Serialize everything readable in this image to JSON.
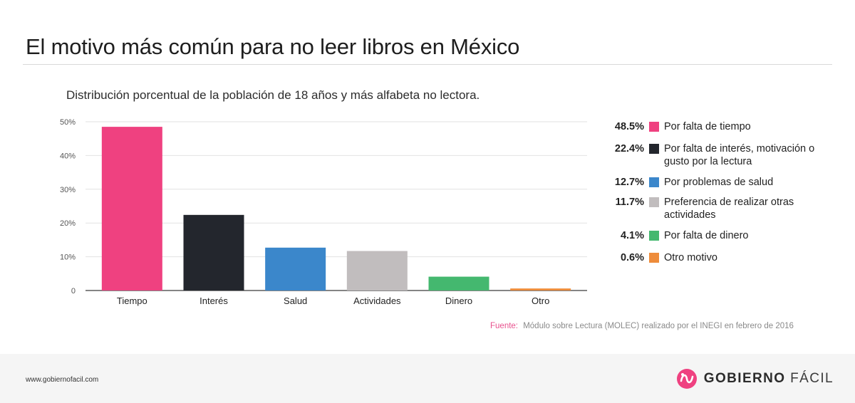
{
  "title": "El motivo más común para no leer libros en México",
  "subtitle": "Distribución porcentual de la población de 18 años y más alfabeta no lectora.",
  "chart_data": {
    "type": "bar",
    "categories": [
      "Tiempo",
      "Interés",
      "Salud",
      "Actividades",
      "Dinero",
      "Otro"
    ],
    "values": [
      48.5,
      22.4,
      12.7,
      11.7,
      4.1,
      0.6
    ],
    "colors": [
      "#ef4180",
      "#23262d",
      "#3b87cb",
      "#c1bdbe",
      "#44b86f",
      "#ee8c3b"
    ],
    "ylim": [
      0,
      50
    ],
    "yticks": [
      0,
      10,
      20,
      30,
      40,
      50
    ],
    "ytick_labels": [
      "0",
      "10%",
      "20%",
      "30%",
      "40%",
      "50%"
    ],
    "grid": true,
    "legend_position": "right"
  },
  "legend": [
    {
      "value": "48.5%",
      "label": "Por falta de tiempo",
      "color": "#ef4180"
    },
    {
      "value": "22.4%",
      "label": "Por falta de interés, motivación o gusto por la lectura",
      "color": "#23262d"
    },
    {
      "value": "12.7%",
      "label": "Por problemas de salud",
      "color": "#3b87cb"
    },
    {
      "value": "11.7%",
      "label": "Preferencia de realizar otras actividades",
      "color": "#c1bdbe"
    },
    {
      "value": "4.1%",
      "label": "Por falta de dinero",
      "color": "#44b86f"
    },
    {
      "value": "0.6%",
      "label": "Otro motivo",
      "color": "#ee8c3b"
    }
  ],
  "source": {
    "label": "Fuente:",
    "text": "Módulo sobre Lectura (MOLEC) realizado por el INEGI en febrero de 2016"
  },
  "footer": {
    "url": "www.gobiernofacil.com",
    "brand_strong": "GOBIERNO",
    "brand_light": "FÁCIL",
    "brand_color": "#ef4180"
  }
}
